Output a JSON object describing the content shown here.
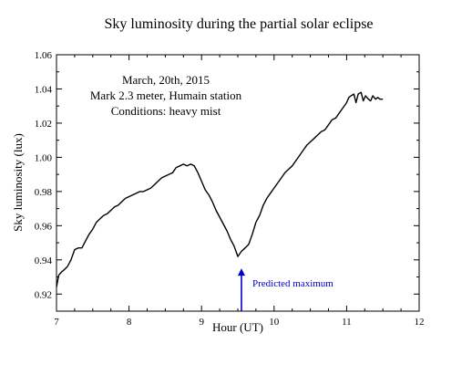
{
  "chart_data": {
    "type": "line",
    "title": "Sky luminosity during the  partial solar eclipse",
    "xlabel": "Hour (UT)",
    "ylabel": "Sky  luminosity  (lux)",
    "xlim": [
      7,
      12
    ],
    "ylim": [
      0.91,
      1.06
    ],
    "x_ticks": [
      "7",
      "8",
      "9",
      "10",
      "11",
      "12"
    ],
    "y_ticks": [
      "0.92",
      "0.94",
      "0.96",
      "0.98",
      "1.00",
      "1.02",
      "1.04",
      "1.06"
    ],
    "annotation_lines": [
      "March, 20th, 2015",
      "Mark 2.3 meter, Humain station",
      "Conditions: heavy mist"
    ],
    "series": [
      {
        "color": "#000000",
        "x": [
          7.0,
          7.03,
          7.07,
          7.1,
          7.15,
          7.2,
          7.25,
          7.3,
          7.35,
          7.4,
          7.45,
          7.5,
          7.55,
          7.6,
          7.65,
          7.7,
          7.75,
          7.8,
          7.85,
          7.9,
          7.95,
          8.0,
          8.05,
          8.1,
          8.15,
          8.2,
          8.25,
          8.3,
          8.35,
          8.4,
          8.45,
          8.5,
          8.55,
          8.6,
          8.65,
          8.7,
          8.75,
          8.8,
          8.85,
          8.9,
          8.95,
          9.0,
          9.05,
          9.1,
          9.15,
          9.2,
          9.25,
          9.3,
          9.35,
          9.4,
          9.45,
          9.5,
          9.55,
          9.6,
          9.65,
          9.7,
          9.75,
          9.8,
          9.85,
          9.9,
          9.95,
          10.0,
          10.05,
          10.1,
          10.15,
          10.2,
          10.25,
          10.3,
          10.35,
          10.4,
          10.45,
          10.5,
          10.55,
          10.6,
          10.65,
          10.7,
          10.75,
          10.8,
          10.85,
          10.9,
          10.95,
          11.0,
          11.03,
          11.06,
          11.1,
          11.13,
          11.16,
          11.2,
          11.23,
          11.26,
          11.3,
          11.33,
          11.36,
          11.4,
          11.43,
          11.46,
          11.5
        ],
        "y": [
          0.924,
          0.931,
          0.933,
          0.934,
          0.936,
          0.94,
          0.946,
          0.947,
          0.947,
          0.951,
          0.955,
          0.958,
          0.962,
          0.964,
          0.966,
          0.967,
          0.969,
          0.971,
          0.972,
          0.974,
          0.976,
          0.977,
          0.978,
          0.979,
          0.98,
          0.98,
          0.981,
          0.982,
          0.984,
          0.986,
          0.988,
          0.989,
          0.99,
          0.991,
          0.994,
          0.995,
          0.996,
          0.995,
          0.996,
          0.995,
          0.991,
          0.986,
          0.981,
          0.978,
          0.974,
          0.969,
          0.965,
          0.961,
          0.957,
          0.952,
          0.948,
          0.942,
          0.945,
          0.947,
          0.949,
          0.955,
          0.962,
          0.966,
          0.972,
          0.976,
          0.979,
          0.982,
          0.985,
          0.988,
          0.991,
          0.993,
          0.995,
          0.998,
          1.001,
          1.004,
          1.007,
          1.009,
          1.011,
          1.013,
          1.015,
          1.016,
          1.019,
          1.022,
          1.023,
          1.026,
          1.029,
          1.032,
          1.035,
          1.036,
          1.037,
          1.032,
          1.037,
          1.038,
          1.033,
          1.036,
          1.034,
          1.033,
          1.036,
          1.034,
          1.035,
          1.034,
          1.034
        ]
      }
    ],
    "marker": {
      "label": "Predicted maximum",
      "x": 9.55,
      "y_from": 0.91,
      "y_to": 0.935,
      "color": "#0000cc"
    },
    "grid": false,
    "legend": "none"
  }
}
